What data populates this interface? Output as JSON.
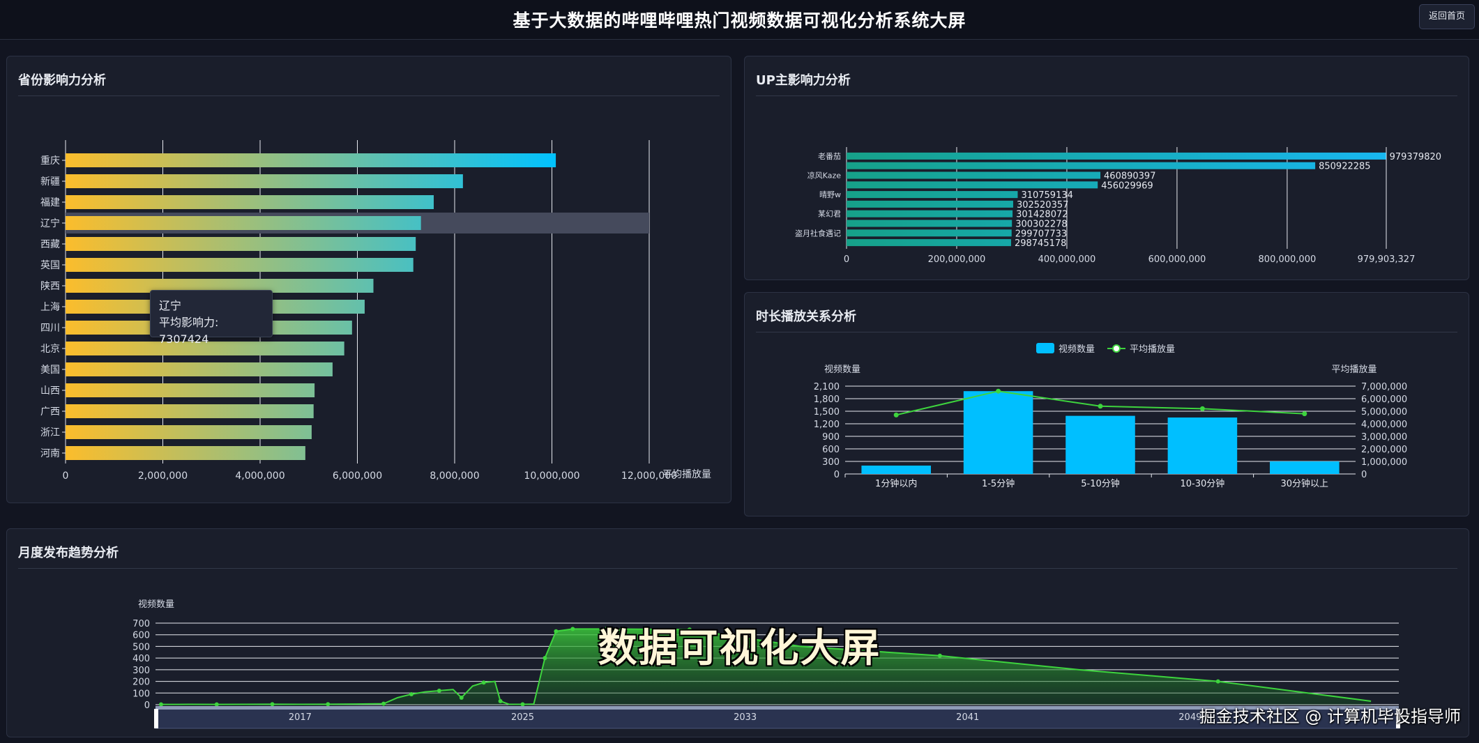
{
  "header": {
    "title": "基于大数据的哔哩哔哩热门视频数据可视化分析系统大屏",
    "back_button": "返回首页"
  },
  "panels": {
    "province": {
      "title": "省份影响力分析"
    },
    "up": {
      "title": "UP主影响力分析"
    },
    "duration": {
      "title": "时长播放关系分析"
    },
    "monthly": {
      "title": "月度发布趋势分析"
    }
  },
  "tooltip": {
    "name": "辽宁",
    "label": "平均影响力: 7307424"
  },
  "overlay": {
    "caption": "数据可视化大屏",
    "watermark": "掘金技术社区 @ 计算机毕设指导师"
  },
  "colors": {
    "bar_gradient_start": "#fbbd2c",
    "bar_gradient_end": "#00c2ff",
    "up_gradient_start": "#16a189",
    "up_gradient_end": "#18b7f0",
    "duration_bar": "#00bfff",
    "line_green": "#3ed43e",
    "highlight": "#454a5c"
  },
  "chart_data": [
    {
      "id": "province",
      "type": "bar",
      "orientation": "horizontal",
      "categories": [
        "重庆",
        "新疆",
        "福建",
        "辽宁",
        "西藏",
        "英国",
        "陕西",
        "上海",
        "四川",
        "北京",
        "美国",
        "山西",
        "广西",
        "浙江",
        "河南"
      ],
      "values": [
        10080000,
        8170000,
        7570000,
        7307424,
        7200000,
        7150000,
        6330000,
        6150000,
        5890000,
        5730000,
        5490000,
        5120000,
        5100000,
        5060000,
        4930000
      ],
      "x_ticks": [
        "0",
        "2,000,000",
        "4,000,000",
        "6,000,000",
        "8,000,000",
        "10,000,000",
        "12,000,000"
      ],
      "xlim": [
        0,
        12000000
      ],
      "xlabel": "平均播放量",
      "highlighted": "辽宁"
    },
    {
      "id": "up",
      "type": "bar",
      "orientation": "horizontal",
      "categories": [
        "老番茄",
        "",
        "凉风Kaze",
        "",
        "晴野w",
        "",
        "某幻君",
        "",
        "盗月社食遇记",
        ""
      ],
      "values": [
        979379820,
        850922285,
        460890397,
        456029969,
        310759134,
        302520357,
        301428072,
        300302278,
        299707733,
        298745178
      ],
      "value_labels": [
        "979379820",
        "850922285",
        "460890397",
        "456029969",
        "310759134",
        "302520357",
        "301428072",
        "300302278",
        "299707733",
        "298745178"
      ],
      "x_ticks": [
        "0",
        "200,000,000",
        "400,000,000",
        "600,000,000",
        "800,000,000",
        "979,903,327"
      ],
      "xlim": [
        0,
        979903327
      ]
    },
    {
      "id": "duration",
      "type": "bar",
      "categories": [
        "1分钟以内",
        "1-5分钟",
        "5-10分钟",
        "10-30分钟",
        "30分钟以上"
      ],
      "series": [
        {
          "name": "视频数量",
          "type": "bar",
          "values": [
            200,
            1980,
            1390,
            1350,
            300
          ]
        },
        {
          "name": "平均播放量",
          "type": "line",
          "values": [
            4700000,
            6600000,
            5400000,
            5200000,
            4800000
          ]
        }
      ],
      "ylabel_left": "视频数量",
      "ylabel_right": "平均播放量",
      "y_ticks_left": [
        "0",
        "300",
        "600",
        "900",
        "1,200",
        "1,500",
        "1,800",
        "2,100"
      ],
      "y_ticks_right": [
        "0",
        "1,000,000",
        "2,000,000",
        "3,000,000",
        "4,000,000",
        "5,000,000",
        "6,000,000",
        "7,000,000"
      ],
      "ylim_left": [
        0,
        2100
      ],
      "ylim_right": [
        0,
        7000000
      ],
      "legend": [
        "视频数量",
        "平均播放量"
      ],
      "legend_position": "top-center"
    },
    {
      "id": "monthly",
      "type": "area",
      "ylabel": "视频数量",
      "y_ticks": [
        "0",
        "100",
        "200",
        "300",
        "400",
        "500",
        "600",
        "700"
      ],
      "ylim": [
        0,
        700
      ],
      "zoom_ticks": [
        "2017",
        "2025",
        "2033",
        "2041",
        "2049"
      ],
      "xlim": [
        2011.8,
        2056.5
      ],
      "points": [
        [
          2012,
          2
        ],
        [
          2013,
          3
        ],
        [
          2014,
          2
        ],
        [
          2015,
          3
        ],
        [
          2016,
          4
        ],
        [
          2017,
          3
        ],
        [
          2018,
          4
        ],
        [
          2019,
          5
        ],
        [
          2020,
          8
        ],
        [
          2020.5,
          60
        ],
        [
          2021,
          90
        ],
        [
          2021.5,
          110
        ],
        [
          2022,
          120
        ],
        [
          2022.5,
          130
        ],
        [
          2022.8,
          60
        ],
        [
          2023.2,
          160
        ],
        [
          2023.6,
          190
        ],
        [
          2024,
          200
        ],
        [
          2024.2,
          30
        ],
        [
          2024.5,
          4
        ],
        [
          2025,
          3
        ],
        [
          2025.4,
          5
        ],
        [
          2025.8,
          400
        ],
        [
          2026.2,
          630
        ],
        [
          2026.8,
          650
        ],
        [
          2028,
          650
        ],
        [
          2031,
          645
        ],
        [
          2035,
          500
        ],
        [
          2040,
          420
        ],
        [
          2045,
          300
        ],
        [
          2050,
          200
        ],
        [
          2055.5,
          30
        ]
      ]
    }
  ]
}
